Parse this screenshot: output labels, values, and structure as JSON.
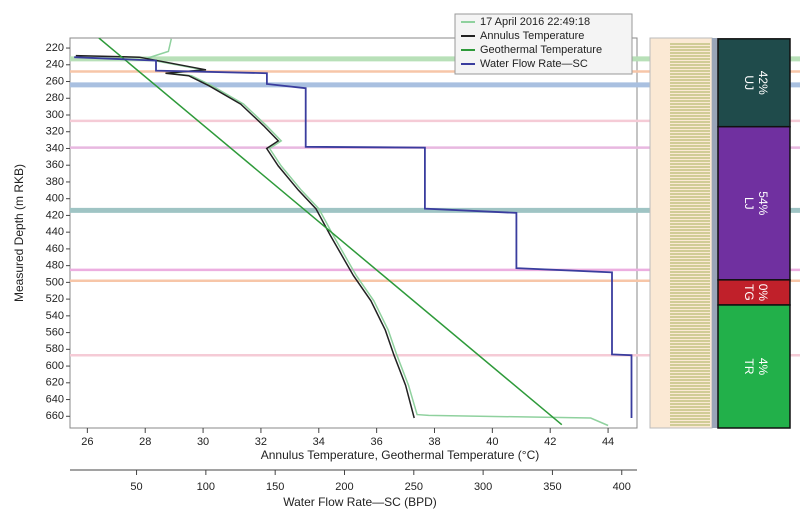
{
  "chart_data": {
    "type": "line",
    "xlabel": "Annulus Temperature, Geothermal Temperature (°C)",
    "x2label": "Water Flow Rate—SC (BPD)",
    "ylabel": "Measured Depth (m RKB)",
    "xlim": [
      25.4,
      45
    ],
    "xticks": [
      26,
      28,
      30,
      32,
      34,
      36,
      38,
      40,
      42,
      44
    ],
    "x2lim": [
      2,
      411
    ],
    "x2ticks": [
      50,
      100,
      150,
      200,
      250,
      300,
      350,
      400
    ],
    "ylim": [
      208,
      674
    ],
    "y_inverted": true,
    "yticks": [
      220,
      240,
      260,
      280,
      300,
      320,
      340,
      360,
      380,
      400,
      420,
      440,
      460,
      480,
      500,
      520,
      540,
      560,
      580,
      600,
      620,
      640,
      660
    ],
    "legend": "upper right",
    "series": [
      {
        "name": "17 April 2016 22:49:18",
        "color": "#8fd19e",
        "x": [
          28.9,
          28.8,
          28.0,
          30.0,
          28.8,
          29.6,
          30.3,
          31.4,
          32.2,
          32.7,
          32.3,
          32.7,
          33.4,
          34.0,
          34.5,
          35.0,
          35.3,
          35.9,
          36.4,
          36.7,
          37.1,
          37.4,
          37.8,
          43.4,
          44.0
        ],
        "y": [
          209,
          224,
          233,
          246,
          250,
          253,
          265,
          287,
          313,
          331,
          340,
          361,
          390,
          412,
          444,
          474,
          492,
          522,
          557,
          587,
          623,
          658,
          659,
          662,
          671
        ]
      },
      {
        "name": "Annulus Temperature",
        "color": "#222222",
        "x": [
          25.6,
          27.8,
          30.1,
          28.7,
          29.5,
          30.2,
          31.3,
          32.1,
          32.6,
          32.2,
          32.6,
          33.3,
          33.9,
          34.4,
          34.9,
          35.2,
          35.8,
          36.3,
          36.6,
          37.0,
          37.3
        ],
        "y": [
          229,
          231,
          246,
          250,
          253,
          265,
          287,
          313,
          331,
          340,
          361,
          390,
          412,
          444,
          474,
          492,
          522,
          557,
          587,
          623,
          662
        ]
      },
      {
        "name": "Geothermal Temperature",
        "color": "#2e9a3a",
        "x": [
          26.4,
          42.4
        ],
        "y": [
          208,
          670
        ]
      },
      {
        "name": "Water Flow Rate—SC",
        "color": "#3a3d9e",
        "axis": "x2",
        "x": [
          5,
          64,
          64,
          144,
          144,
          172,
          172,
          258,
          258,
          324,
          324,
          393,
          393,
          407,
          407
        ],
        "y": [
          231,
          235,
          247,
          250,
          263,
          268,
          338,
          339,
          412,
          417,
          483,
          488,
          586,
          587,
          662
        ]
      }
    ],
    "bands": {
      "depths": [
        233,
        248,
        264,
        307,
        339,
        414,
        485,
        498,
        587
      ],
      "colors": [
        "#b8e0b8",
        "#f7c6a8",
        "#a9c0e0",
        "#f5cbd6",
        "#e8b8e0",
        "#9fc4c4",
        "#ecaee0",
        "#f7c6a8",
        "#f5cbd6"
      ]
    },
    "zones": {
      "names": [
        "UJ",
        "LJ",
        "TG",
        "TR"
      ],
      "values": [
        42,
        54,
        0,
        4
      ],
      "value_labels": [
        "42%",
        "54%",
        "0%",
        "4%"
      ],
      "tops": [
        209,
        314,
        497,
        527
      ],
      "bottoms": [
        314,
        497,
        527,
        674
      ],
      "colors": [
        "#1f4b4b",
        "#7030a0",
        "#c0202a",
        "#22b04a"
      ]
    }
  }
}
